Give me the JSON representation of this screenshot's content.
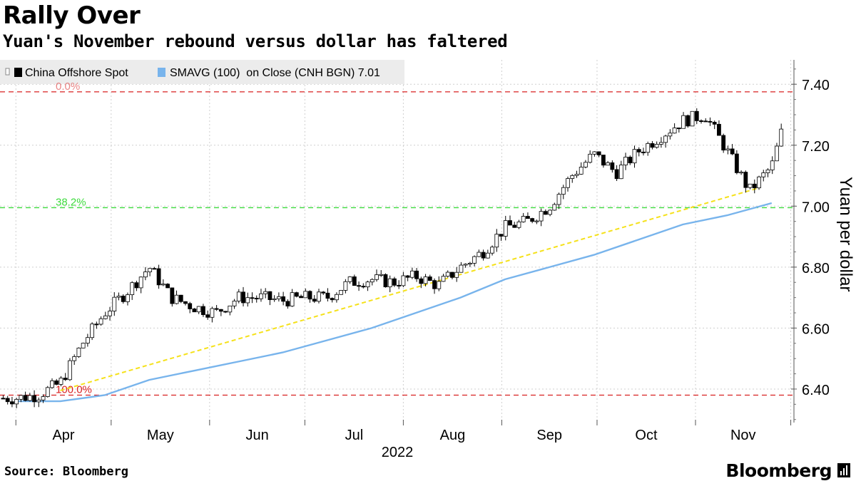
{
  "header": {
    "title": "Rally Over",
    "subtitle": "Yuan's November rebound versus dollar has faltered"
  },
  "footer": {
    "source": "Source: Bloomberg",
    "brand": "Bloomberg"
  },
  "colors": {
    "candle_up": "#ffffff",
    "candle_down": "#000000",
    "sma": "#78b4ec",
    "trend": "#f5e11a",
    "fib_red": "#d92020",
    "fib_green": "#3ddb3d",
    "grid": "#cfcfcf"
  },
  "chart_data": {
    "type": "line",
    "title": "Rally Over",
    "subtitle": "Yuan's November rebound versus dollar has faltered",
    "xlabel": "2022",
    "ylabel": "Yuan per dollar",
    "ylim": [
      6.29,
      7.48
    ],
    "yticks": [
      6.4,
      6.6,
      6.8,
      7.0,
      7.2,
      7.4
    ],
    "ytick_labels": [
      "6.40",
      "6.60",
      "6.80",
      "7.00",
      "7.20",
      "7.40"
    ],
    "xticks": [
      "Apr",
      "May",
      "Jun",
      "Jul",
      "Aug",
      "Sep",
      "Oct",
      "Nov"
    ],
    "year_label": "2022",
    "legend": {
      "placement": "top-left",
      "items": [
        "China Offshore Spot",
        "SMAVG (100)  on Close (CNH BGN) 7.01"
      ]
    },
    "fib_levels": [
      {
        "label": "0.0%",
        "value": 7.375,
        "color": "#d92020"
      },
      {
        "label": "38.2%",
        "value": 6.995,
        "color": "#3ddb3d"
      },
      {
        "label": "100.0%",
        "value": 6.38,
        "color": "#d92020"
      }
    ],
    "trendline": {
      "start": [
        "2022-04-15",
        6.395
      ],
      "end": [
        "2022-11-21",
        7.06
      ]
    },
    "series": [
      {
        "name": "China Offshore Spot",
        "type": "candlestick",
        "weekly_closes": [
          [
            "2022-04-01",
            6.37
          ],
          [
            "2022-04-08",
            6.38
          ],
          [
            "2022-04-15",
            6.42
          ],
          [
            "2022-04-22",
            6.55
          ],
          [
            "2022-04-29",
            6.65
          ],
          [
            "2022-05-06",
            6.72
          ],
          [
            "2022-05-13",
            6.8
          ],
          [
            "2022-05-20",
            6.7
          ],
          [
            "2022-05-27",
            6.67
          ],
          [
            "2022-06-03",
            6.65
          ],
          [
            "2022-06-10",
            6.7
          ],
          [
            "2022-06-17",
            6.7
          ],
          [
            "2022-06-24",
            6.69
          ],
          [
            "2022-07-01",
            6.7
          ],
          [
            "2022-07-08",
            6.7
          ],
          [
            "2022-07-15",
            6.75
          ],
          [
            "2022-07-22",
            6.76
          ],
          [
            "2022-07-29",
            6.75
          ],
          [
            "2022-08-05",
            6.77
          ],
          [
            "2022-08-12",
            6.74
          ],
          [
            "2022-08-19",
            6.8
          ],
          [
            "2022-08-26",
            6.85
          ],
          [
            "2022-09-02",
            6.93
          ],
          [
            "2022-09-09",
            6.95
          ],
          [
            "2022-09-16",
            7.0
          ],
          [
            "2022-09-23",
            7.1
          ],
          [
            "2022-09-30",
            7.17
          ],
          [
            "2022-10-07",
            7.11
          ],
          [
            "2022-10-14",
            7.18
          ],
          [
            "2022-10-21",
            7.23
          ],
          [
            "2022-10-28",
            7.28
          ],
          [
            "2022-11-04",
            7.3
          ],
          [
            "2022-11-11",
            7.18
          ],
          [
            "2022-11-18",
            7.05
          ],
          [
            "2022-11-25",
            7.13
          ],
          [
            "2022-11-28",
            7.24
          ]
        ]
      },
      {
        "name": "SMAVG (100)  on Close (CNH BGN) 7.01",
        "type": "line",
        "points": [
          [
            "2022-04-01",
            6.36
          ],
          [
            "2022-04-15",
            6.36
          ],
          [
            "2022-04-29",
            6.38
          ],
          [
            "2022-05-13",
            6.43
          ],
          [
            "2022-05-27",
            6.46
          ],
          [
            "2022-06-10",
            6.49
          ],
          [
            "2022-06-24",
            6.52
          ],
          [
            "2022-07-08",
            6.56
          ],
          [
            "2022-07-22",
            6.6
          ],
          [
            "2022-08-05",
            6.65
          ],
          [
            "2022-08-19",
            6.7
          ],
          [
            "2022-09-02",
            6.76
          ],
          [
            "2022-09-16",
            6.8
          ],
          [
            "2022-09-30",
            6.84
          ],
          [
            "2022-10-14",
            6.89
          ],
          [
            "2022-10-28",
            6.94
          ],
          [
            "2022-11-11",
            6.97
          ],
          [
            "2022-11-25",
            7.01
          ]
        ]
      }
    ]
  }
}
